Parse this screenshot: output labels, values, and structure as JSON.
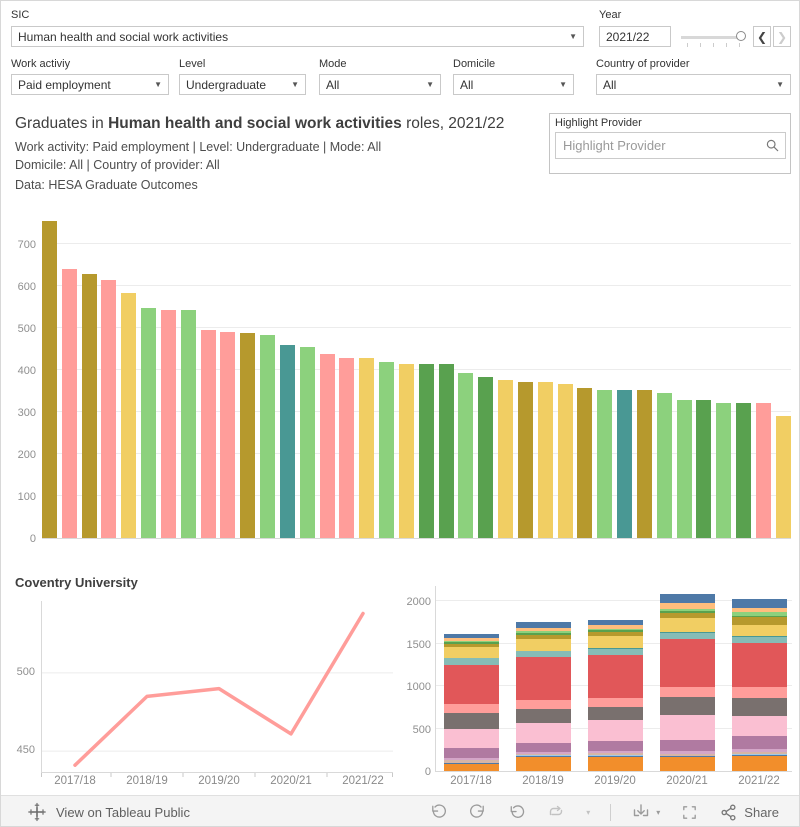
{
  "filters": {
    "sic": {
      "label": "SIC",
      "value": "Human health and social work activities"
    },
    "year": {
      "label": "Year",
      "value": "2021/22"
    },
    "work_activity": {
      "label": "Work activiy",
      "value": "Paid employment"
    },
    "level": {
      "label": "Level",
      "value": "Undergraduate"
    },
    "mode": {
      "label": "Mode",
      "value": "All"
    },
    "domicile": {
      "label": "Domicile",
      "value": "All"
    },
    "country_of_provider": {
      "label": "Country of provider",
      "value": "All"
    }
  },
  "header": {
    "title_prefix": "Graduates in ",
    "title_bold": "Human health and social work activities",
    "title_suffix": " roles, 2021/22",
    "subtitle_line1": "Work activity: Paid employment | Level: Undergraduate | Mode: All",
    "subtitle_line2": "Domicile: All | Country of provider: All",
    "subtitle_line3": "Data: HESA Graduate Outcomes"
  },
  "highlight": {
    "label": "Highlight Provider",
    "placeholder": "Highlight Provider"
  },
  "footer": {
    "view_label": "View on Tableau Public",
    "share_label": "Share"
  },
  "colors": {
    "olive": "#B6992D",
    "salmon": "#FF9D9A",
    "yellow": "#F1CE63",
    "light_green": "#8CD17D",
    "dark_green": "#59A14F",
    "teal": "#499894",
    "line": "#FF9D9A",
    "grid": "#ececec",
    "axis": "#d9d9d9",
    "tick_text": "#8f8f8f"
  },
  "chart_data": [
    {
      "type": "bar",
      "description": "Graduates by provider, sorted descending (no x labels shown)",
      "yticks": [
        0,
        100,
        200,
        300,
        400,
        500,
        600,
        700
      ],
      "ylim": [
        0,
        790
      ],
      "values": [
        755,
        640,
        628,
        613,
        582,
        547,
        543,
        543,
        495,
        490,
        487,
        482,
        460,
        455,
        437,
        429,
        429,
        419,
        415,
        415,
        414,
        392,
        382,
        377,
        372,
        372,
        367,
        356,
        352,
        351,
        351,
        345,
        328,
        328,
        321,
        321,
        321,
        290
      ],
      "colors": [
        "#B6992D",
        "#FF9D9A",
        "#B6992D",
        "#FF9D9A",
        "#F1CE63",
        "#8CD17D",
        "#FF9D9A",
        "#8CD17D",
        "#FF9D9A",
        "#FF9D9A",
        "#B6992D",
        "#8CD17D",
        "#499894",
        "#8CD17D",
        "#FF9D9A",
        "#FF9D9A",
        "#F1CE63",
        "#8CD17D",
        "#F1CE63",
        "#59A14F",
        "#59A14F",
        "#8CD17D",
        "#59A14F",
        "#F1CE63",
        "#B6992D",
        "#F1CE63",
        "#F1CE63",
        "#B6992D",
        "#8CD17D",
        "#499894",
        "#B6992D",
        "#8CD17D",
        "#8CD17D",
        "#59A14F",
        "#8CD17D",
        "#59A14F",
        "#FF9D9A",
        "#F1CE63"
      ]
    },
    {
      "type": "line",
      "title": "Coventry University",
      "x": [
        "2017/18",
        "2018/19",
        "2019/20",
        "2020/21",
        "2021/22"
      ],
      "values": [
        441,
        485,
        490,
        461,
        538
      ],
      "yticks": [
        450,
        500
      ],
      "ylim": [
        436,
        546
      ],
      "color": "#FF9D9A"
    },
    {
      "type": "stacked-bar",
      "x": [
        "2017/18",
        "2018/19",
        "2019/20",
        "2020/21",
        "2021/22"
      ],
      "yticks": [
        0,
        500,
        1000,
        1500,
        2000
      ],
      "ylim": [
        0,
        2180
      ],
      "totals": [
        1620,
        1757,
        1780,
        2090,
        2030
      ],
      "segment_colors": [
        "#F28E2B",
        "#4E79A7",
        "#A0CBE8",
        "#D7B5A6",
        "#D4A6C8",
        "#B07AA1",
        "#FABFD2",
        "#79706E",
        "#FF9D9A",
        "#E15759",
        "#86BCB6",
        "#499894",
        "#F1CE63",
        "#B6992D",
        "#59A14F",
        "#8CD17D",
        "#FFBE7D",
        "#4E79A7"
      ],
      "stacks": [
        [
          80,
          12,
          8,
          30,
          30,
          110,
          225,
          190,
          112,
          460,
          72,
          8,
          122,
          45,
          15,
          20,
          32,
          49
        ],
        [
          170,
          12,
          6,
          18,
          25,
          95,
          245,
          158,
          108,
          505,
          70,
          8,
          135,
          55,
          18,
          25,
          38,
          66
        ],
        [
          170,
          12,
          6,
          20,
          28,
          118,
          252,
          152,
          103,
          512,
          70,
          8,
          148,
          45,
          15,
          22,
          40,
          59
        ],
        [
          160,
          15,
          6,
          25,
          30,
          130,
          295,
          212,
          120,
          565,
          76,
          8,
          160,
          62,
          18,
          30,
          75,
          103
        ],
        [
          175,
          15,
          6,
          30,
          30,
          155,
          245,
          210,
          122,
          520,
          76,
          8,
          135,
          90,
          20,
          38,
          55,
          100
        ]
      ]
    }
  ]
}
